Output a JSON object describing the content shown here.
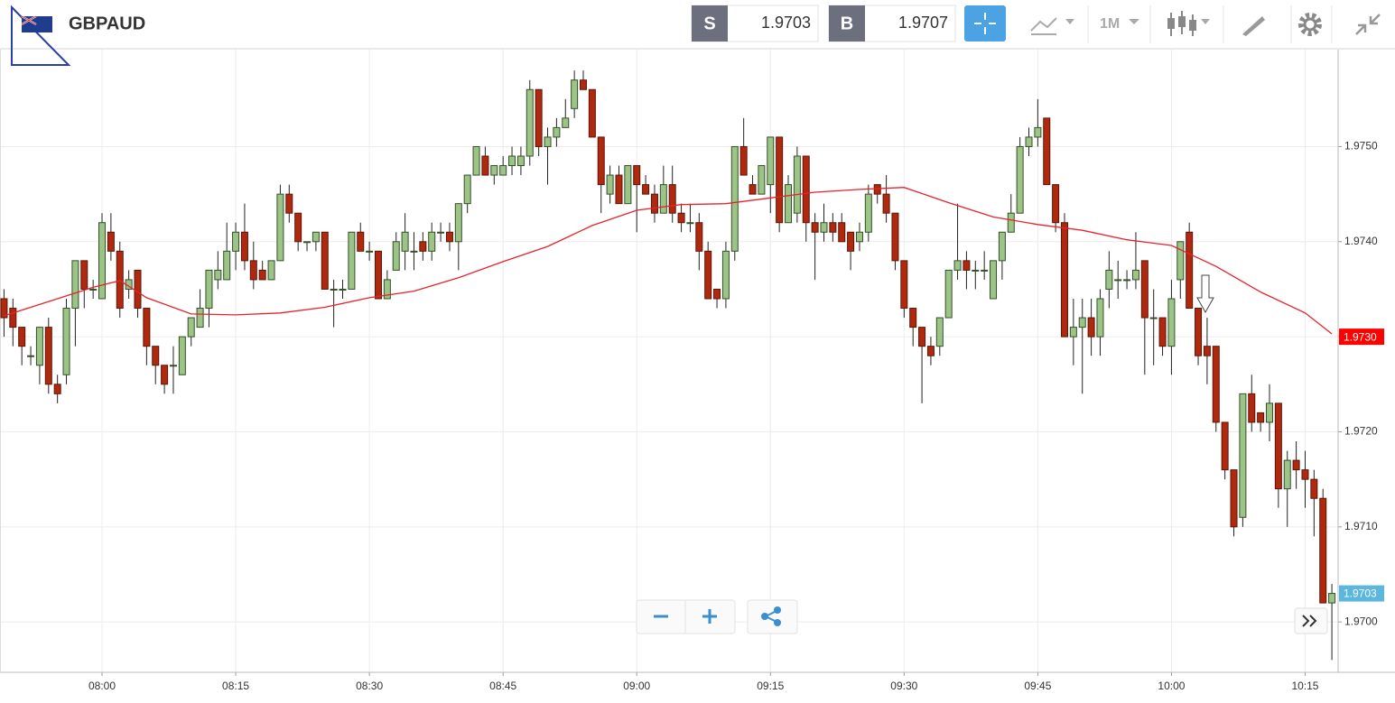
{
  "header": {
    "symbol": "GBPAUD",
    "sell_label": "S",
    "sell_price": "1.9703",
    "buy_label": "B",
    "buy_price": "1.9707",
    "timeframe": "1M"
  },
  "chart_data": {
    "type": "candlestick",
    "x": [
      469,
      470,
      471,
      472,
      473,
      474,
      475,
      476,
      477,
      478,
      479,
      480,
      481,
      482,
      483,
      484,
      485,
      486,
      487,
      488,
      489,
      490,
      491,
      492,
      493,
      494,
      495,
      496,
      497,
      498,
      499,
      500,
      501,
      502,
      503,
      504,
      505,
      506,
      507,
      508,
      509,
      510,
      511,
      512,
      513,
      514,
      515,
      516,
      517,
      518,
      519,
      520,
      521,
      522,
      523,
      524,
      525,
      526,
      527,
      528,
      529,
      530,
      531,
      532,
      533,
      534,
      535,
      536,
      537,
      538,
      539,
      540,
      541,
      542,
      543,
      544,
      545,
      546,
      547,
      548,
      549,
      550,
      551,
      552,
      553,
      554,
      555,
      556,
      557,
      558,
      559,
      560,
      561,
      562,
      563,
      564,
      565,
      566,
      567,
      568,
      569,
      570,
      571,
      572,
      573,
      574,
      575,
      576,
      577,
      578,
      579,
      580,
      581,
      582,
      583,
      584,
      585,
      586,
      587,
      588,
      589,
      590,
      591,
      592,
      593,
      594,
      595,
      596,
      597,
      598,
      599,
      600,
      601,
      602,
      603,
      604,
      605,
      606,
      607,
      608,
      609,
      610,
      611,
      612,
      613,
      614,
      615,
      616,
      617,
      618
    ],
    "open": [
      1.9734,
      1.9733,
      1.9731,
      1.9728,
      1.9727,
      1.9731,
      1.9725,
      1.9726,
      1.9733,
      1.9738,
      1.9735,
      1.9734,
      1.9741,
      1.9739,
      1.9735,
      1.9737,
      1.9733,
      1.9729,
      1.9727,
      1.9727,
      1.9726,
      1.973,
      1.9731,
      1.9733,
      1.9736,
      1.9736,
      1.9739,
      1.9741,
      1.9738,
      1.9737,
      1.9736,
      1.9738,
      1.9745,
      1.9743,
      1.974,
      1.974,
      1.9741,
      1.9735,
      1.9735,
      1.9735,
      1.9741,
      1.9739,
      1.9739,
      1.9734,
      1.9737,
      1.9739,
      1.9739,
      1.974,
      1.9739,
      1.9741,
      1.9741,
      1.974,
      1.9744,
      1.9747,
      1.9749,
      1.9747,
      1.9747,
      1.9748,
      1.9748,
      1.9749,
      1.9756,
      1.975,
      1.9751,
      1.9752,
      1.9754,
      1.9757,
      1.9756,
      1.9751,
      1.9745,
      1.9747,
      1.9744,
      1.9748,
      1.9746,
      1.9745,
      1.9743,
      1.9746,
      1.9743,
      1.9742,
      1.9742,
      1.9739,
      1.9735,
      1.9734,
      1.9739,
      1.975,
      1.9746,
      1.9745,
      1.9746,
      1.9751,
      1.9742,
      1.9743,
      1.9749,
      1.9742,
      1.9741,
      1.9742,
      1.9742,
      1.9741,
      1.974,
      1.9741,
      1.9746,
      1.9745,
      1.9743,
      1.9738,
      1.9733,
      1.9731,
      1.9729,
      1.9729,
      1.9732,
      1.9737,
      1.9738,
      1.9737,
      1.9737,
      1.9734,
      1.9738,
      1.9741,
      1.9743,
      1.975,
      1.9751,
      1.9753,
      1.9746,
      1.9742,
      1.973,
      1.9731,
      1.9732,
      1.973,
      1.9735,
      1.9736,
      1.9736,
      1.9736,
      1.9738,
      1.9732,
      1.9732,
      1.9729,
      1.9736,
      1.9741,
      1.9733,
      1.9729,
      1.9729,
      1.9721,
      1.9716,
      1.9711,
      1.9724,
      1.9722,
      1.9721,
      1.9723,
      1.9714,
      1.9717,
      1.9716,
      1.9715,
      1.9713,
      1.9702
    ],
    "high": [
      1.9735,
      1.9734,
      1.9731,
      1.9729,
      1.9731,
      1.9732,
      1.9726,
      1.9734,
      1.9738,
      1.9738,
      1.9736,
      1.9743,
      1.9743,
      1.974,
      1.9737,
      1.9737,
      1.9733,
      1.9729,
      1.9727,
      1.9729,
      1.973,
      1.9732,
      1.9735,
      1.9737,
      1.9739,
      1.9742,
      1.9742,
      1.9744,
      1.974,
      1.9738,
      1.9738,
      1.9746,
      1.9746,
      1.9743,
      1.974,
      1.9741,
      1.9741,
      1.9736,
      1.9736,
      1.9741,
      1.9742,
      1.974,
      1.9739,
      1.9737,
      1.9741,
      1.9743,
      1.9741,
      1.9741,
      1.9742,
      1.9742,
      1.9742,
      1.9744,
      1.9747,
      1.975,
      1.975,
      1.9748,
      1.9749,
      1.975,
      1.975,
      1.9757,
      1.9756,
      1.9752,
      1.9753,
      1.9755,
      1.9758,
      1.9758,
      1.9756,
      1.9751,
      1.9748,
      1.9748,
      1.9748,
      1.9748,
      1.9747,
      1.9746,
      1.9748,
      1.9748,
      1.9744,
      1.9744,
      1.9743,
      1.974,
      1.9735,
      1.974,
      1.975,
      1.9753,
      1.9747,
      1.9748,
      1.9751,
      1.9751,
      1.9747,
      1.975,
      1.9749,
      1.9743,
      1.9744,
      1.9743,
      1.9743,
      1.9741,
      1.9742,
      1.9746,
      1.9746,
      1.9747,
      1.9743,
      1.9738,
      1.9733,
      1.9731,
      1.973,
      1.9732,
      1.9737,
      1.9744,
      1.9739,
      1.9738,
      1.9739,
      1.9738,
      1.9741,
      1.9745,
      1.9751,
      1.9752,
      1.9755,
      1.9753,
      1.9746,
      1.9743,
      1.9734,
      1.9734,
      1.9734,
      1.9735,
      1.9739,
      1.9738,
      1.9737,
      1.9741,
      1.9738,
      1.9735,
      1.9732,
      1.9736,
      1.974,
      1.9742,
      1.9733,
      1.9732,
      1.9729,
      1.9721,
      1.9716,
      1.9724,
      1.9726,
      1.9722,
      1.9725,
      1.9723,
      1.9718,
      1.9719,
      1.9718,
      1.9716,
      1.9714,
      1.9704
    ],
    "low": [
      1.973,
      1.9729,
      1.9727,
      1.9727,
      1.9725,
      1.9724,
      1.9723,
      1.9725,
      1.9729,
      1.9733,
      1.9734,
      1.9734,
      1.9738,
      1.9732,
      1.9734,
      1.9732,
      1.9727,
      1.9725,
      1.9724,
      1.9724,
      1.9726,
      1.9729,
      1.9731,
      1.9731,
      1.9735,
      1.9736,
      1.9737,
      1.9737,
      1.9735,
      1.9736,
      1.9736,
      1.9738,
      1.9742,
      1.9739,
      1.9739,
      1.9739,
      1.9735,
      1.9731,
      1.9734,
      1.9735,
      1.9739,
      1.9738,
      1.9734,
      1.9734,
      1.9737,
      1.9737,
      1.9737,
      1.9738,
      1.9738,
      1.974,
      1.9739,
      1.9737,
      1.9743,
      1.9747,
      1.9747,
      1.9746,
      1.9747,
      1.9747,
      1.9747,
      1.9748,
      1.9749,
      1.9746,
      1.975,
      1.9752,
      1.9753,
      1.9756,
      1.9751,
      1.9743,
      1.9744,
      1.9744,
      1.9744,
      1.9741,
      1.9745,
      1.9742,
      1.9743,
      1.9742,
      1.9741,
      1.9741,
      1.9737,
      1.9734,
      1.9733,
      1.9733,
      1.9738,
      1.9747,
      1.9745,
      1.9745,
      1.9743,
      1.9741,
      1.9742,
      1.9742,
      1.974,
      1.9736,
      1.974,
      1.974,
      1.974,
      1.9737,
      1.9739,
      1.974,
      1.9744,
      1.9742,
      1.9737,
      1.9732,
      1.9729,
      1.9723,
      1.9727,
      1.9728,
      1.9732,
      1.9736,
      1.9735,
      1.9735,
      1.9736,
      1.9734,
      1.9736,
      1.9741,
      1.9743,
      1.9749,
      1.975,
      1.9746,
      1.9741,
      1.973,
      1.9727,
      1.9724,
      1.9728,
      1.9728,
      1.9733,
      1.9734,
      1.9735,
      1.9735,
      1.9726,
      1.9727,
      1.9728,
      1.9726,
      1.9734,
      1.9733,
      1.9727,
      1.9725,
      1.972,
      1.9715,
      1.9709,
      1.971,
      1.972,
      1.972,
      1.9719,
      1.9712,
      1.971,
      1.9714,
      1.9712,
      1.9709,
      1.9702,
      1.9696
    ],
    "close": [
      1.9732,
      1.9731,
      1.9729,
      1.9728,
      1.9731,
      1.9725,
      1.9724,
      1.9733,
      1.9738,
      1.9735,
      1.9735,
      1.9742,
      1.9739,
      1.9733,
      1.9736,
      1.9733,
      1.9729,
      1.9727,
      1.9725,
      1.9727,
      1.973,
      1.9732,
      1.9733,
      1.9737,
      1.9737,
      1.9739,
      1.9741,
      1.9738,
      1.9736,
      1.9736,
      1.9738,
      1.9745,
      1.9743,
      1.974,
      1.974,
      1.9741,
      1.9735,
      1.9735,
      1.9735,
      1.9741,
      1.9739,
      1.9739,
      1.9734,
      1.9736,
      1.974,
      1.9741,
      1.9739,
      1.9739,
      1.9741,
      1.9741,
      1.974,
      1.9744,
      1.9747,
      1.975,
      1.9747,
      1.9748,
      1.9748,
      1.9749,
      1.9749,
      1.9756,
      1.975,
      1.9751,
      1.9752,
      1.9753,
      1.9757,
      1.9756,
      1.9751,
      1.9746,
      1.9747,
      1.9744,
      1.9748,
      1.9746,
      1.9745,
      1.9743,
      1.9746,
      1.9743,
      1.9742,
      1.9742,
      1.9739,
      1.9734,
      1.9734,
      1.9739,
      1.975,
      1.9747,
      1.9745,
      1.9748,
      1.9751,
      1.9742,
      1.9746,
      1.9749,
      1.9742,
      1.9741,
      1.9742,
      1.9741,
      1.974,
      1.9739,
      1.9741,
      1.9745,
      1.9745,
      1.9743,
      1.9738,
      1.9733,
      1.9731,
      1.9729,
      1.9728,
      1.9732,
      1.9737,
      1.9738,
      1.9737,
      1.9737,
      1.9737,
      1.9738,
      1.9741,
      1.9743,
      1.975,
      1.9751,
      1.9752,
      1.9746,
      1.9742,
      1.973,
      1.9731,
      1.9732,
      1.973,
      1.9734,
      1.9737,
      1.9736,
      1.9736,
      1.9737,
      1.9732,
      1.9732,
      1.9729,
      1.9734,
      1.974,
      1.9733,
      1.9728,
      1.9728,
      1.9721,
      1.9716,
      1.971,
      1.9724,
      1.9721,
      1.9721,
      1.9723,
      1.9714,
      1.9717,
      1.9716,
      1.9715,
      1.9713,
      1.9702,
      1.9703
    ],
    "up_color": "#9cc487",
    "down_color": "#b0290f",
    "ma": {
      "color": "#e8222a",
      "x": [
        469,
        479,
        482,
        485,
        490,
        495,
        500,
        505,
        510,
        515,
        520,
        525,
        530,
        535,
        540,
        545,
        550,
        555,
        560,
        565,
        570,
        575,
        580,
        585,
        590,
        595,
        600,
        605,
        610,
        615,
        618
      ],
      "values": [
        1.97322,
        1.97352,
        1.97359,
        1.97341,
        1.97324,
        1.97323,
        1.97325,
        1.97331,
        1.97341,
        1.97348,
        1.97362,
        1.97379,
        1.97395,
        1.97417,
        1.97433,
        1.97439,
        1.9744,
        1.97446,
        1.97452,
        1.97455,
        1.97457,
        1.97441,
        1.97426,
        1.97418,
        1.97412,
        1.97402,
        1.97396,
        1.97374,
        1.97347,
        1.97325,
        1.97303
      ]
    },
    "price_tags": [
      {
        "value": 1.973,
        "label": "1.9730",
        "color": "#ff0000"
      },
      {
        "value": 1.9703,
        "label": "1.9703",
        "color": "#5bb7dd"
      }
    ],
    "xlim": [
      468.55,
      618.7
    ],
    "ylim": [
      1.96947,
      1.97602
    ],
    "xticks": [
      {
        "value": 480,
        "label": "08:00"
      },
      {
        "value": 495,
        "label": "08:15"
      },
      {
        "value": 510,
        "label": "08:30"
      },
      {
        "value": 525,
        "label": "08:45"
      },
      {
        "value": 540,
        "label": "09:00"
      },
      {
        "value": 555,
        "label": "09:15"
      },
      {
        "value": 570,
        "label": "09:30"
      },
      {
        "value": 585,
        "label": "09:45"
      },
      {
        "value": 600,
        "label": "10:00"
      },
      {
        "value": 615,
        "label": "10:15"
      }
    ],
    "yticks": [
      {
        "value": 1.97,
        "label": "1.9700"
      },
      {
        "value": 1.971,
        "label": "1.9710"
      },
      {
        "value": 1.972,
        "label": "1.9720"
      },
      {
        "value": 1.973,
        "label": "1.9730"
      },
      {
        "value": 1.974,
        "label": "1.9740"
      },
      {
        "value": 1.975,
        "label": "1.9750"
      }
    ],
    "grid": true
  }
}
